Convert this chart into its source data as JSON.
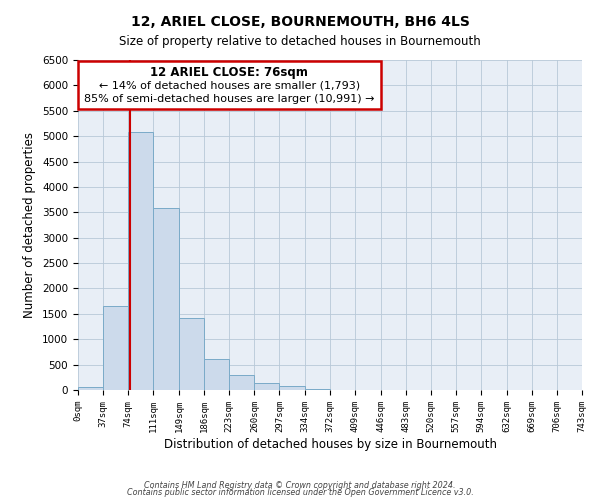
{
  "title": "12, ARIEL CLOSE, BOURNEMOUTH, BH6 4LS",
  "subtitle": "Size of property relative to detached houses in Bournemouth",
  "xlabel": "Distribution of detached houses by size in Bournemouth",
  "ylabel": "Number of detached properties",
  "bar_color": "#ccdaeb",
  "bar_edge_color": "#7aaac8",
  "background_color": "#ffffff",
  "plot_bg_color": "#e8eef6",
  "grid_color": "#b8c8d8",
  "annotation_box_color": "#cc0000",
  "property_line_color": "#cc0000",
  "annotation_text_line1": "12 ARIEL CLOSE: 76sqm",
  "annotation_text_line2": "← 14% of detached houses are smaller (1,793)",
  "annotation_text_line3": "85% of semi-detached houses are larger (10,991) →",
  "bin_edges": [
    0,
    37,
    74,
    111,
    149,
    186,
    223,
    260,
    297,
    334,
    372,
    409,
    446,
    483,
    520,
    557,
    594,
    632,
    669,
    706,
    743
  ],
  "bin_values": [
    60,
    1650,
    5080,
    3580,
    1420,
    610,
    290,
    140,
    75,
    20,
    5,
    2,
    0,
    0,
    0,
    0,
    0,
    0,
    0,
    0
  ],
  "tick_labels": [
    "0sqm",
    "37sqm",
    "74sqm",
    "111sqm",
    "149sqm",
    "186sqm",
    "223sqm",
    "260sqm",
    "297sqm",
    "334sqm",
    "372sqm",
    "409sqm",
    "446sqm",
    "483sqm",
    "520sqm",
    "557sqm",
    "594sqm",
    "632sqm",
    "669sqm",
    "706sqm",
    "743sqm"
  ],
  "ylim": [
    0,
    6500
  ],
  "yticks": [
    0,
    500,
    1000,
    1500,
    2000,
    2500,
    3000,
    3500,
    4000,
    4500,
    5000,
    5500,
    6000,
    6500
  ],
  "property_line_x": 76,
  "footer_line1": "Contains HM Land Registry data © Crown copyright and database right 2024.",
  "footer_line2": "Contains public sector information licensed under the Open Government Licence v3.0."
}
